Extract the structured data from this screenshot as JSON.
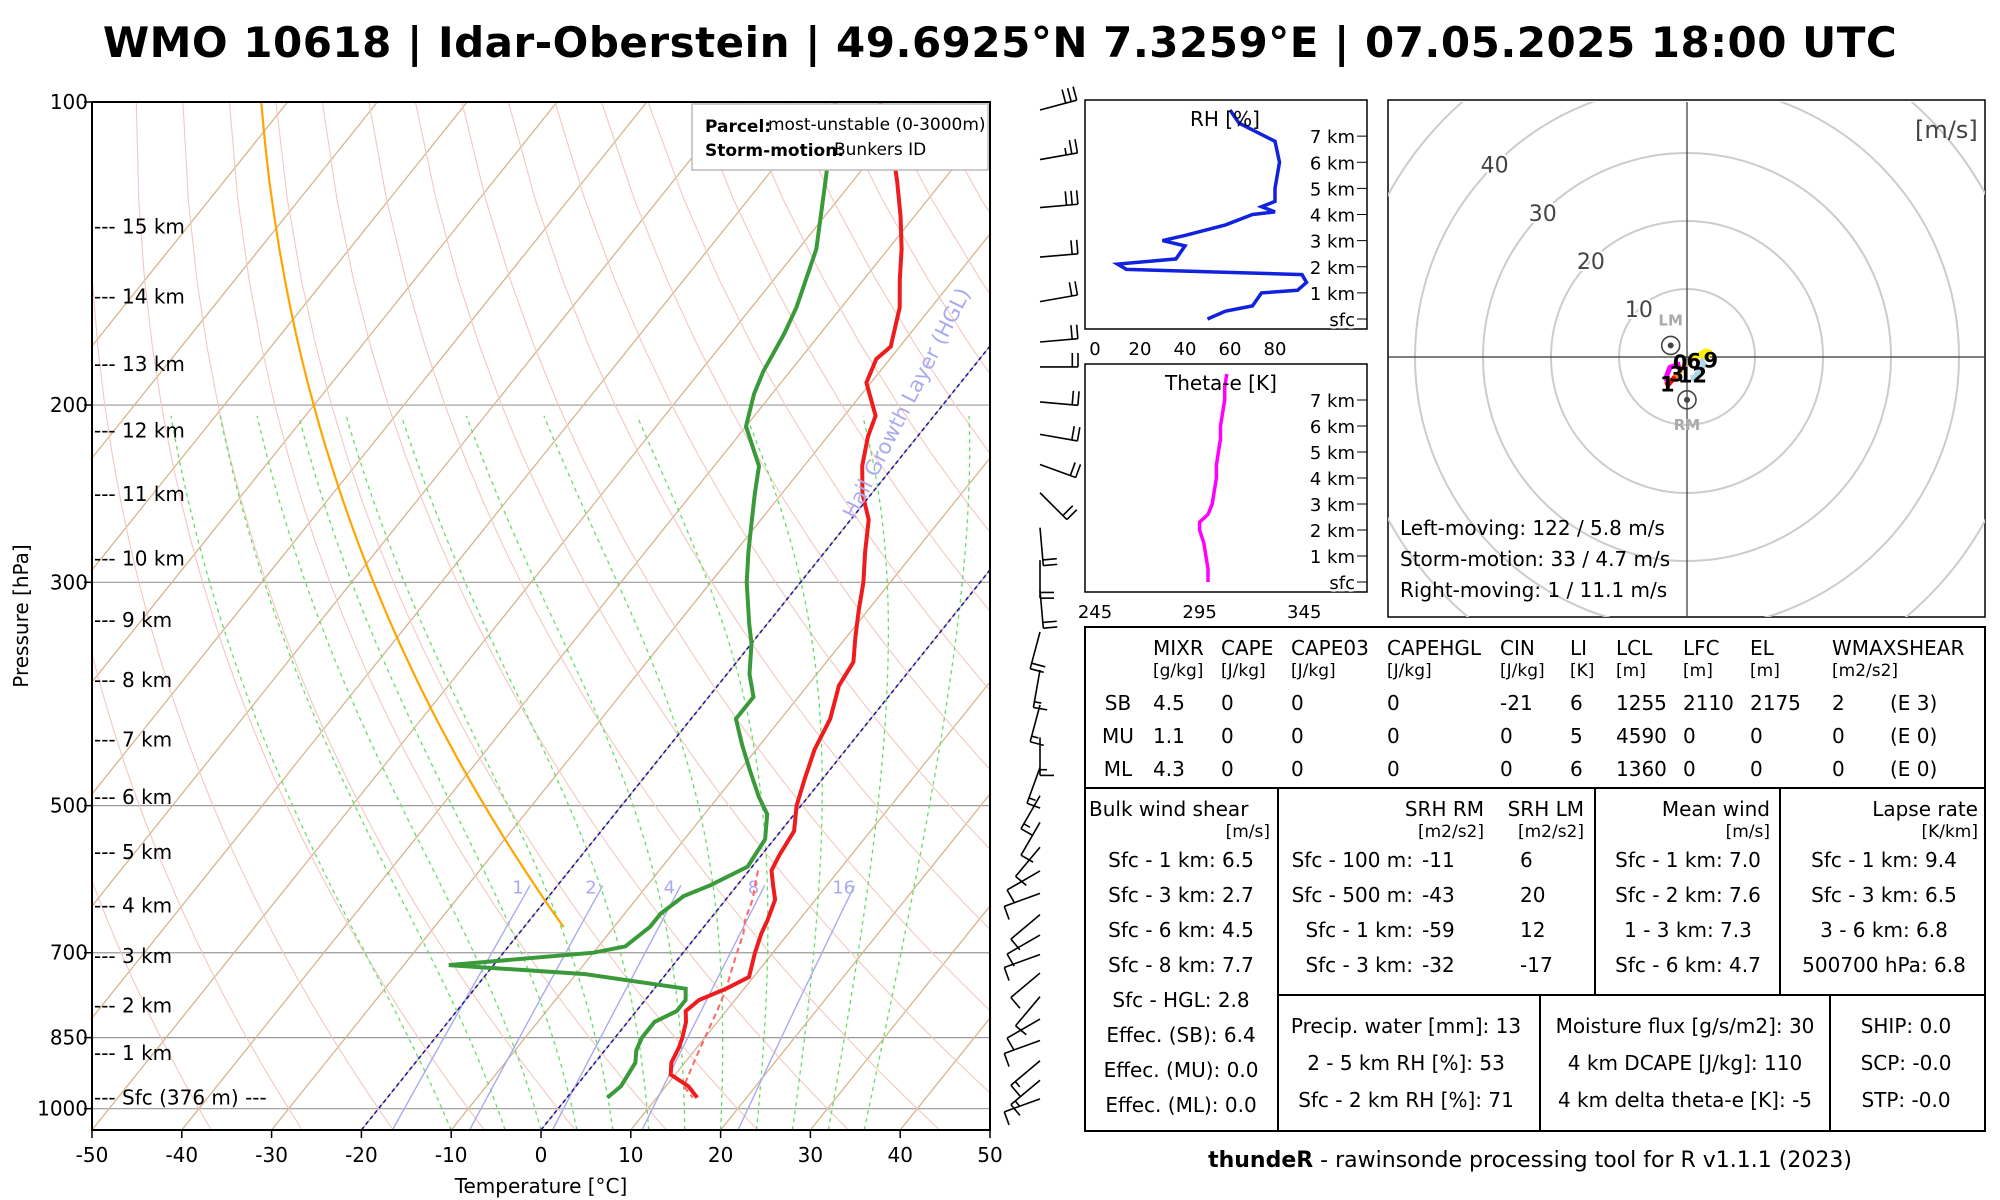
{
  "title": "WMO 10618 | Idar-Oberstein | 49.6925°N 7.3259°E | 07.05.2025 18:00 UTC",
  "skewt": {
    "xlabel": "Temperature [°C]",
    "ylabel": "Pressure [hPa]",
    "x_ticks": [
      "-50",
      "-40",
      "-30",
      "-20",
      "-10",
      "0",
      "10",
      "20",
      "30",
      "40",
      "50"
    ],
    "p_ticks": [
      {
        "p": 100,
        "label": "100"
      },
      {
        "p": 200,
        "label": "200"
      },
      {
        "p": 300,
        "label": "300"
      },
      {
        "p": 500,
        "label": "500"
      },
      {
        "p": 700,
        "label": "700"
      },
      {
        "p": 850,
        "label": "850"
      },
      {
        "p": 1000,
        "label": "1000"
      }
    ],
    "height_labels": [
      {
        "p": 975,
        "label": "--- Sfc (376 m) ---"
      },
      {
        "p": 880,
        "label": "--- 1 km"
      },
      {
        "p": 790,
        "label": "--- 2 km"
      },
      {
        "p": 705,
        "label": "--- 3 km"
      },
      {
        "p": 628,
        "label": "--- 4 km"
      },
      {
        "p": 556,
        "label": "--- 5 km"
      },
      {
        "p": 490,
        "label": "--- 6 km"
      },
      {
        "p": 430,
        "label": "--- 7 km"
      },
      {
        "p": 375,
        "label": "--- 8 km"
      },
      {
        "p": 327,
        "label": "--- 9 km"
      },
      {
        "p": 284,
        "label": "--- 10 km"
      },
      {
        "p": 245,
        "label": "--- 11 km"
      },
      {
        "p": 212,
        "label": "--- 12 km"
      },
      {
        "p": 182,
        "label": "--- 13 km"
      },
      {
        "p": 156,
        "label": "--- 14 km"
      },
      {
        "p": 133,
        "label": "--- 15 km"
      }
    ],
    "legend": {
      "parcel_key": "Parcel:",
      "parcel_val": "most-unstable (0-3000m)",
      "storm_key": "Storm-motion:",
      "storm_val": "Bunkers ID"
    },
    "hgl_label": "Hail Growth Layer (HGL)",
    "mixr_labels": [
      "1",
      "2",
      "4",
      "8",
      "16"
    ],
    "temperature": [
      [
        975,
        14.5
      ],
      [
        950,
        12.5
      ],
      [
        925,
        9.5
      ],
      [
        900,
        8.5
      ],
      [
        870,
        8
      ],
      [
        850,
        7.5
      ],
      [
        820,
        6.5
      ],
      [
        800,
        5.5
      ],
      [
        780,
        6
      ],
      [
        760,
        8
      ],
      [
        740,
        9.5
      ],
      [
        700,
        8
      ],
      [
        670,
        7
      ],
      [
        650,
        6.5
      ],
      [
        620,
        5.5
      ],
      [
        600,
        4
      ],
      [
        580,
        2.5
      ],
      [
        560,
        2
      ],
      [
        530,
        1.5
      ],
      [
        500,
        -0.5
      ],
      [
        470,
        -2
      ],
      [
        440,
        -3.5
      ],
      [
        410,
        -4.5
      ],
      [
        380,
        -6.5
      ],
      [
        360,
        -7
      ],
      [
        340,
        -9
      ],
      [
        320,
        -11
      ],
      [
        300,
        -13
      ],
      [
        280,
        -15.5
      ],
      [
        260,
        -18
      ],
      [
        245,
        -21
      ],
      [
        230,
        -23.5
      ],
      [
        215,
        -25.5
      ],
      [
        205,
        -26.5
      ],
      [
        190,
        -30.5
      ],
      [
        180,
        -31.5
      ],
      [
        175,
        -31
      ],
      [
        160,
        -33.5
      ],
      [
        150,
        -36
      ],
      [
        140,
        -38.5
      ],
      [
        130,
        -41.5
      ],
      [
        120,
        -45
      ],
      [
        110,
        -49
      ],
      [
        100,
        -54
      ]
    ],
    "dewpoint": [
      [
        975,
        4.5
      ],
      [
        950,
        5
      ],
      [
        900,
        4.5
      ],
      [
        875,
        3.5
      ],
      [
        850,
        3
      ],
      [
        820,
        3
      ],
      [
        800,
        4.5
      ],
      [
        780,
        4.5
      ],
      [
        760,
        3.5
      ],
      [
        735,
        -9
      ],
      [
        720,
        -25
      ],
      [
        700,
        -10
      ],
      [
        690,
        -7
      ],
      [
        660,
        -6
      ],
      [
        640,
        -6
      ],
      [
        615,
        -5
      ],
      [
        600,
        -3
      ],
      [
        575,
        -0.5
      ],
      [
        540,
        -1
      ],
      [
        510,
        -3
      ],
      [
        490,
        -5.5
      ],
      [
        460,
        -9
      ],
      [
        435,
        -12
      ],
      [
        410,
        -15
      ],
      [
        390,
        -15
      ],
      [
        370,
        -17.5
      ],
      [
        345,
        -20
      ],
      [
        330,
        -22
      ],
      [
        300,
        -26
      ],
      [
        280,
        -28.5
      ],
      [
        260,
        -31
      ],
      [
        245,
        -33
      ],
      [
        230,
        -35
      ],
      [
        210,
        -40
      ],
      [
        195,
        -42
      ],
      [
        185,
        -43
      ],
      [
        170,
        -44
      ],
      [
        160,
        -45
      ],
      [
        140,
        -48
      ],
      [
        120,
        -53
      ],
      [
        100,
        -59
      ]
    ],
    "parcel": [
      [
        580,
        1
      ],
      [
        600,
        2
      ],
      [
        620,
        3
      ],
      [
        650,
        4
      ],
      [
        670,
        5
      ],
      [
        700,
        6
      ],
      [
        730,
        7
      ],
      [
        760,
        8
      ],
      [
        800,
        9
      ],
      [
        850,
        10
      ],
      [
        900,
        11
      ],
      [
        950,
        12
      ],
      [
        975,
        14
      ]
    ]
  },
  "rh_panel": {
    "title": "RH [%]",
    "x_ticks": [
      "0",
      "20",
      "40",
      "60",
      "80"
    ],
    "km_labels": [
      "sfc",
      "1 km",
      "2 km",
      "3 km",
      "4 km",
      "5 km",
      "6 km",
      "7 km"
    ],
    "profile": [
      [
        0,
        50
      ],
      [
        0.3,
        58
      ],
      [
        0.5,
        70
      ],
      [
        1.0,
        74
      ],
      [
        1.1,
        90
      ],
      [
        1.4,
        94
      ],
      [
        1.7,
        92
      ],
      [
        1.9,
        14
      ],
      [
        2.1,
        10
      ],
      [
        2.3,
        36
      ],
      [
        2.8,
        40
      ],
      [
        3.0,
        30
      ],
      [
        3.2,
        40
      ],
      [
        3.6,
        58
      ],
      [
        4.0,
        70
      ],
      [
        4.1,
        80
      ],
      [
        4.3,
        74
      ],
      [
        4.5,
        80
      ],
      [
        5.0,
        80
      ],
      [
        6.0,
        82
      ],
      [
        6.8,
        80
      ],
      [
        7.5,
        64
      ],
      [
        8,
        60
      ]
    ]
  },
  "thetae_panel": {
    "title": "Theta-e [K]",
    "x_ticks": [
      "245",
      "295",
      "345"
    ],
    "km_labels": [
      "sfc",
      "1 km",
      "2 km",
      "3 km",
      "4 km",
      "5 km",
      "6 km",
      "7 km"
    ],
    "profile": [
      [
        0,
        299
      ],
      [
        0.5,
        299
      ],
      [
        1.0,
        298
      ],
      [
        1.5,
        297
      ],
      [
        2.0,
        295
      ],
      [
        2.3,
        295
      ],
      [
        2.6,
        299
      ],
      [
        3.0,
        301
      ],
      [
        3.5,
        302
      ],
      [
        4.0,
        303
      ],
      [
        4.5,
        303
      ],
      [
        5.0,
        304
      ],
      [
        5.5,
        305
      ],
      [
        6.0,
        305
      ],
      [
        6.5,
        306
      ],
      [
        7.0,
        307
      ],
      [
        7.5,
        307
      ],
      [
        8.0,
        308
      ]
    ]
  },
  "hodograph": {
    "unit": "[m/s]",
    "ring_labels": [
      "10",
      "20",
      "30",
      "40"
    ],
    "lm_label": "LM",
    "rm_label": "RM",
    "point_labels": [
      {
        "t": "0",
        "u": -1.0,
        "v": -0.7
      },
      {
        "t": "1",
        "u": -2.9,
        "v": -3.9
      },
      {
        "t": "3",
        "u": -1.5,
        "v": -2.4
      },
      {
        "t": "6",
        "u": 1.0,
        "v": -0.5
      },
      {
        "t": "9",
        "u": 3.5,
        "v": -0.4
      },
      {
        "t": "12",
        "u": 0.8,
        "v": -2.6
      }
    ],
    "lm": [
      -2.4,
      1.7
    ],
    "rm": [
      0.0,
      -6.3
    ],
    "segments": [
      {
        "color": "#ff00ff",
        "pts": [
          [
            -1.0,
            -1.0
          ],
          [
            -2.5,
            -1.5
          ],
          [
            -3.0,
            -2.8
          ],
          [
            -3.0,
            -3.6
          ]
        ]
      },
      {
        "color": "#ff0000",
        "pts": [
          [
            -3.0,
            -3.6
          ],
          [
            -2.8,
            -4.1
          ],
          [
            -2.2,
            -3.4
          ],
          [
            -1.7,
            -2.9
          ]
        ]
      },
      {
        "color": "#ff8c00",
        "pts": [
          [
            -1.7,
            -2.9
          ],
          [
            -1.2,
            -2.4
          ],
          [
            -0.6,
            -1.4
          ]
        ]
      },
      {
        "color": "#d2b48c",
        "pts": [
          [
            -0.6,
            -1.4
          ],
          [
            0.2,
            -0.8
          ],
          [
            1.0,
            -0.2
          ]
        ]
      },
      {
        "color": "#ffee00",
        "pts": [
          [
            1.0,
            -0.2
          ],
          [
            1.9,
            0.4
          ],
          [
            2.7,
            0.9
          ],
          [
            3.4,
            0.7
          ],
          [
            3.0,
            0.1
          ],
          [
            2.0,
            -0.3
          ]
        ]
      },
      {
        "color": "#add8e6",
        "pts": [
          [
            2.0,
            -0.3
          ],
          [
            2.5,
            -1.2
          ],
          [
            1.5,
            -2.4
          ],
          [
            1.0,
            -3.3
          ],
          [
            0.8,
            -2.6
          ]
        ]
      }
    ],
    "info": [
      "Left-moving: 122 / 5.8 m/s",
      "Storm-motion: 33 / 4.7 m/s",
      "Right-moving: 1 / 11.1 m/s"
    ]
  },
  "params_table": {
    "headers": [
      {
        "name": "MIXR",
        "unit": "[g/kg]"
      },
      {
        "name": "CAPE",
        "unit": "[J/kg]"
      },
      {
        "name": "CAPE03",
        "unit": "[J/kg]"
      },
      {
        "name": "CAPEHGL",
        "unit": "[J/kg]"
      },
      {
        "name": "CIN",
        "unit": "[J/kg]"
      },
      {
        "name": "LI",
        "unit": "[K]"
      },
      {
        "name": "LCL",
        "unit": "[m]"
      },
      {
        "name": "LFC",
        "unit": "[m]"
      },
      {
        "name": "EL",
        "unit": "[m]"
      },
      {
        "name": "WMAXSHEAR",
        "unit": "[m2/s2]"
      }
    ],
    "rows": [
      {
        "label": "SB",
        "values": [
          "4.5",
          "0",
          "0",
          "0",
          "-21",
          "6",
          "1255",
          "2110",
          "2175",
          "2",
          "(E 3)"
        ]
      },
      {
        "label": "MU",
        "values": [
          "1.1",
          "0",
          "0",
          "0",
          "0",
          "5",
          "4590",
          "0",
          "0",
          "0",
          "(E 0)"
        ]
      },
      {
        "label": "ML",
        "values": [
          "4.3",
          "0",
          "0",
          "0",
          "0",
          "6",
          "1360",
          "0",
          "0",
          "0",
          "(E 0)"
        ]
      }
    ]
  },
  "bulk_shear": {
    "title": "Bulk wind shear",
    "unit": "[m/s]",
    "rows": [
      "Sfc - 1 km: 6.5",
      "Sfc - 3 km: 2.7",
      "Sfc - 6 km: 4.5",
      "Sfc - 8 km: 7.7",
      "Sfc - HGL: 2.8",
      "Effec. (SB): 6.4",
      "Effec. (MU): 0.0",
      "Effec. (ML): 0.0"
    ]
  },
  "srh": {
    "h_rm": "SRH RM",
    "h_lm": "SRH LM",
    "u_rm": "[m2/s2]",
    "u_lm": "[m2/s2]",
    "rows": [
      {
        "label": "Sfc - 100 m:",
        "rm": "-11",
        "lm": "6"
      },
      {
        "label": "Sfc - 500 m:",
        "rm": "-43",
        "lm": "20"
      },
      {
        "label": "Sfc - 1 km:",
        "rm": "-59",
        "lm": "12"
      },
      {
        "label": "Sfc - 3 km:",
        "rm": "-32",
        "lm": "-17"
      }
    ]
  },
  "mean_wind": {
    "title": "Mean wind",
    "unit": "[m/s]",
    "rows": [
      "Sfc - 1 km: 7.0",
      "Sfc - 2 km: 7.6",
      "1 - 3 km: 7.3",
      "Sfc - 6 km: 4.7"
    ]
  },
  "lapse_rate": {
    "title": "Lapse rate",
    "unit": "[K/km]",
    "rows": [
      "Sfc - 1 km: 9.4",
      "Sfc - 3 km: 6.5",
      "3 - 6 km: 6.8",
      "500700 hPa: 6.8"
    ]
  },
  "moisture": [
    "Precip. water [mm]: 13",
    "2 - 5 km RH [%]: 53",
    "Sfc - 2 km RH [%]: 71"
  ],
  "flux": [
    "Moisture flux [g/s/m2]: 30",
    "4 km DCAPE [J/kg]: 110",
    "4 km delta theta-e [K]: -5"
  ],
  "composite": [
    "SHIP: 0.0",
    "SCP: -0.0",
    "STP: -0.0"
  ],
  "footer": {
    "bold": "thundeR",
    "rest": " - rawinsonde processing tool for R v1.1.1 (2023)"
  },
  "barbs": [
    [
      100,
      0,
      75,
      30
    ],
    [
      112,
      0,
      80,
      25
    ],
    [
      125,
      0,
      85,
      28
    ],
    [
      140,
      0,
      85,
      22
    ],
    [
      155,
      0,
      80,
      22
    ],
    [
      170,
      0,
      85,
      20
    ],
    [
      180,
      0,
      90,
      18
    ],
    [
      195,
      0,
      95,
      18
    ],
    [
      210,
      0,
      100,
      18
    ],
    [
      225,
      0,
      110,
      20
    ],
    [
      240,
      0,
      135,
      22
    ],
    [
      260,
      0,
      175,
      20
    ],
    [
      280,
      0,
      180,
      18
    ],
    [
      300,
      0,
      175,
      18
    ],
    [
      330,
      0,
      195,
      18
    ],
    [
      360,
      0,
      190,
      16
    ],
    [
      390,
      0,
      195,
      14
    ],
    [
      420,
      0,
      180,
      16
    ],
    [
      450,
      0,
      200,
      14
    ],
    [
      480,
      0,
      210,
      14
    ],
    [
      510,
      0,
      210,
      12
    ],
    [
      540,
      0,
      220,
      12
    ],
    [
      570,
      0,
      240,
      10
    ],
    [
      600,
      0,
      250,
      10
    ],
    [
      630,
      0,
      230,
      10
    ],
    [
      660,
      0,
      240,
      10
    ],
    [
      690,
      0,
      250,
      10
    ],
    [
      720,
      0,
      230,
      12
    ],
    [
      760,
      0,
      220,
      12
    ],
    [
      800,
      0,
      240,
      12
    ],
    [
      840,
      0,
      250,
      12
    ],
    [
      880,
      0,
      230,
      14
    ],
    [
      920,
      0,
      230,
      14
    ],
    [
      960,
      0,
      250,
      12
    ]
  ]
}
